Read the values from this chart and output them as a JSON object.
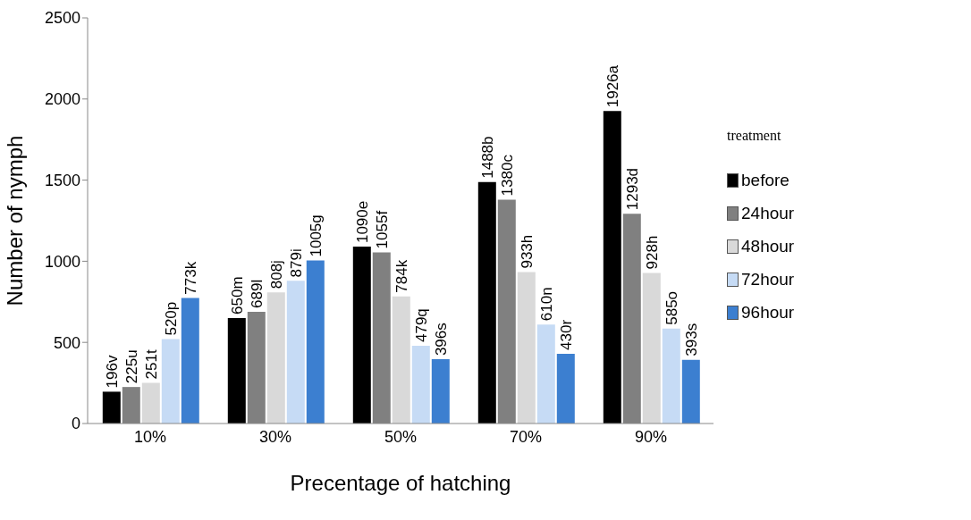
{
  "chart_data": {
    "type": "bar",
    "xlabel": "Precentage of hatching",
    "ylabel": "Number of nymph",
    "legend_title": "treatment",
    "categories": [
      "10%",
      "30%",
      "50%",
      "70%",
      "90%"
    ],
    "series": [
      {
        "name": "before",
        "color": "#000000",
        "values": [
          196,
          650,
          1090,
          1488,
          1926
        ],
        "value_labels": [
          "196v",
          "650m",
          "1090e",
          "1488b",
          "1926a"
        ]
      },
      {
        "name": "24hour",
        "color": "#808080",
        "values": [
          225,
          689,
          1055,
          1380,
          1293
        ],
        "value_labels": [
          "225u",
          "689l",
          "1055f",
          "1380c",
          "1293d"
        ]
      },
      {
        "name": "48hour",
        "color": "#d9d9d9",
        "values": [
          251,
          808,
          784,
          933,
          928
        ],
        "value_labels": [
          "251t",
          "808j",
          "784k",
          "933h",
          "928h"
        ]
      },
      {
        "name": "72hour",
        "color": "#c6dbf5",
        "values": [
          520,
          879,
          479,
          610,
          585
        ],
        "value_labels": [
          "520p",
          "879i",
          "479q",
          "610n",
          "585o"
        ]
      },
      {
        "name": "96hour",
        "color": "#3c7fd0",
        "values": [
          773,
          1005,
          396,
          430,
          393
        ],
        "value_labels": [
          "773k",
          "1005g",
          "396s",
          "430r",
          "393s"
        ]
      }
    ],
    "ylim": [
      0,
      2500
    ],
    "yticks": [
      0,
      500,
      1000,
      1500,
      2000,
      2500
    ],
    "grid": false,
    "legend": "right"
  }
}
